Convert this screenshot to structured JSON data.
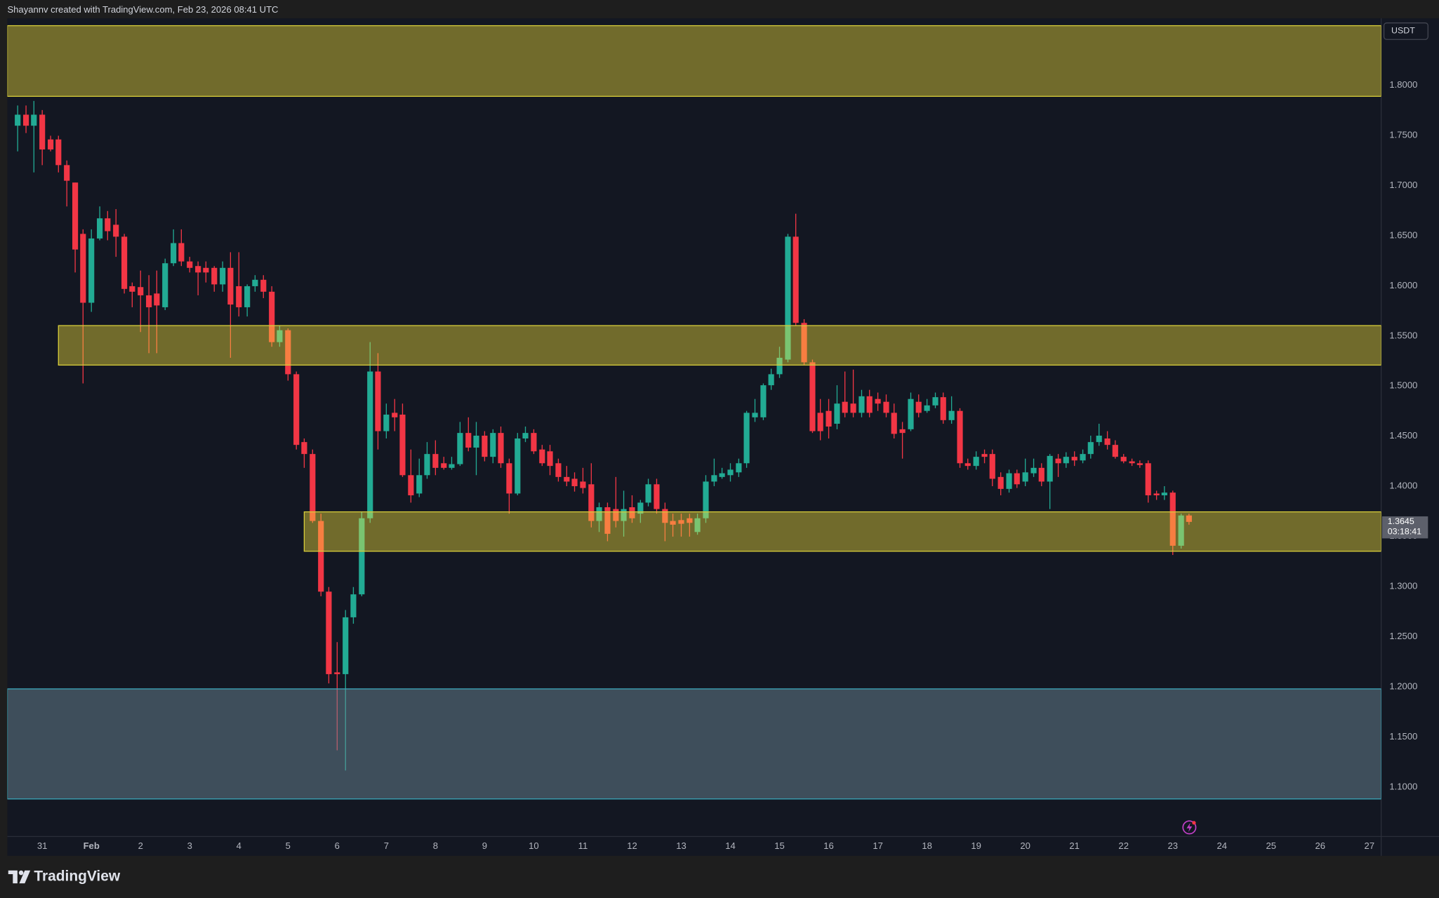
{
  "header": {
    "attribution": "Shayannv created with TradingView.com, Feb 23, 2026 08:41 UTC"
  },
  "footer": {
    "brand": "TradingView"
  },
  "chart_data": {
    "type": "candlestick",
    "currency": "USDT",
    "up_color": "#22ab94",
    "down_color": "#f23645",
    "x": [
      -0.5,
      -0.33,
      -0.17,
      0,
      0.17,
      0.33,
      0.5,
      0.67,
      0.83,
      1,
      1.17,
      1.33,
      1.5,
      1.67,
      1.83,
      2,
      2.17,
      2.33,
      2.5,
      2.67,
      2.83,
      3,
      3.17,
      3.33,
      3.5,
      3.67,
      3.83,
      4,
      4.17,
      4.33,
      4.5,
      4.67,
      4.83,
      5,
      5.17,
      5.33,
      5.5,
      5.67,
      5.83,
      6,
      6.17,
      6.33,
      6.5,
      6.67,
      6.83,
      7,
      7.17,
      7.33,
      7.5,
      7.67,
      7.83,
      8,
      8.17,
      8.33,
      8.5,
      8.67,
      8.83,
      9,
      9.17,
      9.33,
      9.5,
      9.67,
      9.83,
      10,
      10.17,
      10.33,
      10.5,
      10.67,
      10.83,
      11,
      11.17,
      11.33,
      11.5,
      11.67,
      11.83,
      12,
      12.17,
      12.33,
      12.5,
      12.67,
      12.83,
      13,
      13.17,
      13.33,
      13.5,
      13.67,
      13.83,
      14,
      14.17,
      14.33,
      14.5,
      14.67,
      14.83,
      15,
      15.17,
      15.33,
      15.5,
      15.67,
      15.83,
      16,
      16.17,
      16.33,
      16.5,
      16.67,
      16.83,
      17,
      17.17,
      17.33,
      17.5,
      17.67,
      17.83,
      18,
      18.17,
      18.33,
      18.5,
      18.67,
      18.83,
      19,
      19.17,
      19.33,
      19.5,
      19.67,
      19.83,
      20,
      20.17,
      20.33,
      20.5,
      20.67,
      20.83,
      21,
      21.17,
      21.33,
      21.5,
      21.67,
      21.83,
      22,
      22.17,
      22.33,
      22.5,
      22.67,
      22.83,
      23,
      23.17,
      23.33
    ],
    "open": [
      1.7597,
      1.7707,
      1.7597,
      1.7707,
      1.746,
      1.746,
      1.7204,
      1.703,
      1.6518,
      1.5831,
      1.6472,
      1.6673,
      1.6609,
      1.649,
      1.5996,
      1.5987,
      1.5905,
      1.5923,
      1.5786,
      1.6225,
      1.6426,
      1.6243,
      1.6197,
      1.6179,
      1.6179,
      1.6014,
      1.6179,
      1.5996,
      1.5786,
      1.5996,
      1.606,
      1.5941,
      1.5438,
      1.5557,
      1.5118,
      1.4441,
      1.4322,
      1.3654,
      1.2949,
      1.2144,
      1.2126,
      1.2693,
      1.2922,
      1.3681,
      1.5145,
      1.455,
      1.4733,
      1.4715,
      1.4111,
      1.3928,
      1.4111,
      1.4322,
      1.423,
      1.4184,
      1.4221,
      1.4532,
      1.4386,
      1.4505,
      1.4294,
      1.4532,
      1.423,
      1.3928,
      1.4477,
      1.4532,
      1.4367,
      1.4349,
      1.423,
      1.4093,
      1.4075,
      1.4047,
      1.402,
      1.3654,
      1.3791,
      1.3773,
      1.3654,
      1.3791,
      1.3727,
      1.3837,
      1.402,
      1.3773,
      1.3654,
      1.3663,
      1.3681,
      1.3544,
      1.3681,
      1.4047,
      1.4093,
      1.4111,
      1.4139,
      1.423,
      1.4688,
      1.4688,
      1.5008,
      1.5118,
      1.5264,
      1.649,
      1.563,
      1.5237,
      1.4733,
      1.4752,
      1.4624,
      1.4843,
      1.4825,
      1.4733,
      1.4898,
      1.4871,
      1.4843,
      1.4733,
      1.4569,
      1.4569,
      1.4843,
      1.4752,
      1.4807,
      1.4889,
      1.466,
      1.4752,
      1.423,
      1.4203,
      1.4322,
      1.4322,
      1.4093,
      1.3974,
      1.413,
      1.4047,
      1.413,
      1.4184,
      1.4047,
      1.4276,
      1.423,
      1.4294,
      1.4258,
      1.4322,
      1.4441,
      1.4477,
      1.4413,
      1.4294,
      1.4249,
      1.423,
      1.423,
      1.3928,
      1.391,
      1.3937,
      1.3407,
      1.3709
    ],
    "high": [
      1.7799,
      1.7799,
      1.7844,
      1.7753,
      1.7497,
      1.7497,
      1.725,
      1.703,
      1.6563,
      1.6563,
      1.6792,
      1.6746,
      1.6765,
      1.6518,
      1.6033,
      1.6152,
      1.6106,
      1.6152,
      1.6271,
      1.6563,
      1.6563,
      1.6289,
      1.6243,
      1.6243,
      1.6197,
      1.6243,
      1.6335,
      1.6335,
      1.6014,
      1.6106,
      1.6106,
      1.5996,
      1.5603,
      1.5575,
      1.5145,
      1.4477,
      1.4367,
      1.3727,
      1.2995,
      1.2446,
      1.2766,
      1.2995,
      1.3745,
      1.5438,
      1.5328,
      1.4825,
      1.4871,
      1.4825,
      1.4367,
      1.4276,
      1.4441,
      1.4459,
      1.4294,
      1.4294,
      1.4642,
      1.4688,
      1.4642,
      1.455,
      1.4569,
      1.4596,
      1.4276,
      1.4532,
      1.4596,
      1.4569,
      1.4413,
      1.4413,
      1.4276,
      1.4203,
      1.4139,
      1.4184,
      1.423,
      1.3837,
      1.3837,
      1.4093,
      1.3956,
      1.391,
      1.3864,
      1.4075,
      1.4075,
      1.3837,
      1.3727,
      1.3727,
      1.3727,
      1.3727,
      1.4111,
      1.4276,
      1.4184,
      1.423,
      1.4276,
      1.4752,
      1.4871,
      1.5026,
      1.5173,
      1.5392,
      1.6518,
      1.6719,
      1.5667,
      1.5264,
      1.4871,
      1.4871,
      1.5008,
      1.5145,
      1.5164,
      1.4962,
      1.4962,
      1.4935,
      1.4916,
      1.4825,
      1.4642,
      1.4935,
      1.4916,
      1.4871,
      1.4935,
      1.4935,
      1.4898,
      1.4779,
      1.4276,
      1.4349,
      1.4367,
      1.4367,
      1.4139,
      1.4166,
      1.4166,
      1.4276,
      1.4276,
      1.423,
      1.4322,
      1.4322,
      1.434,
      1.4349,
      1.4367,
      1.4505,
      1.4624,
      1.455,
      1.4459,
      1.4322,
      1.4276,
      1.4258,
      1.4258,
      1.3956,
      1.4001,
      1.3956,
      1.3727,
      1.3727
    ],
    "low": [
      1.7341,
      1.7524,
      1.7131,
      1.7204,
      1.7341,
      1.7131,
      1.6792,
      1.6133,
      1.5026,
      1.574,
      1.6454,
      1.6454,
      1.6289,
      1.5923,
      1.5786,
      1.5539,
      1.5328,
      1.5328,
      1.5758,
      1.6197,
      1.6197,
      1.6133,
      1.5905,
      1.6033,
      1.5941,
      1.5941,
      1.5282,
      1.5694,
      1.5694,
      1.5941,
      1.5877,
      1.5392,
      1.5392,
      1.5054,
      1.4367,
      1.4184,
      1.3635,
      1.2903,
      1.2034,
      1.1366,
      1.1165,
      1.2629,
      1.2903,
      1.3635,
      1.4367,
      1.4477,
      1.455,
      1.4093,
      1.3837,
      1.3892,
      1.4075,
      1.4111,
      1.4166,
      1.4166,
      1.4203,
      1.4349,
      1.4111,
      1.4249,
      1.423,
      1.4184,
      1.3727,
      1.391,
      1.4441,
      1.4322,
      1.4203,
      1.4111,
      1.4047,
      1.4001,
      1.3947,
      1.3928,
      1.359,
      1.3544,
      1.3452,
      1.359,
      1.3498,
      1.3635,
      1.3635,
      1.38,
      1.3727,
      1.3452,
      1.3498,
      1.3498,
      1.3498,
      1.3517,
      1.3635,
      1.4001,
      1.4075,
      1.4047,
      1.4093,
      1.4184,
      1.4642,
      1.466,
      1.4962,
      1.5081,
      1.5237,
      1.5603,
      1.5209,
      1.4532,
      1.4459,
      1.4477,
      1.4569,
      1.4688,
      1.4688,
      1.4688,
      1.4688,
      1.4752,
      1.4688,
      1.4477,
      1.4276,
      1.455,
      1.4688,
      1.4733,
      1.4779,
      1.4624,
      1.4624,
      1.4184,
      1.4166,
      1.4166,
      1.423,
      1.4001,
      1.391,
      1.3937,
      1.3983,
      1.4001,
      1.4093,
      1.4001,
      1.3773,
      1.4093,
      1.4184,
      1.4203,
      1.423,
      1.4276,
      1.4404,
      1.4367,
      1.4276,
      1.423,
      1.4203,
      1.4184,
      1.3837,
      1.3864,
      1.3864,
      1.3315,
      1.3379,
      1.3617
    ],
    "close": [
      1.7707,
      1.7597,
      1.7707,
      1.736,
      1.736,
      1.7204,
      1.7048,
      1.6362,
      1.5831,
      1.6472,
      1.6673,
      1.6545,
      1.649,
      1.5969,
      1.5941,
      1.5905,
      1.5786,
      1.5804,
      1.6225,
      1.6426,
      1.6243,
      1.6179,
      1.6133,
      1.6133,
      1.6014,
      1.6179,
      1.5813,
      1.5786,
      1.5996,
      1.606,
      1.5941,
      1.5438,
      1.5557,
      1.5118,
      1.4413,
      1.4322,
      1.3654,
      1.2949,
      1.2126,
      1.2126,
      1.2693,
      1.2922,
      1.3681,
      1.5145,
      1.455,
      1.4715,
      1.4688,
      1.4111,
      1.391,
      1.4111,
      1.4322,
      1.4184,
      1.4184,
      1.4221,
      1.4532,
      1.4386,
      1.4505,
      1.4294,
      1.4532,
      1.423,
      1.3928,
      1.4477,
      1.4532,
      1.4349,
      1.423,
      1.4203,
      1.4093,
      1.4047,
      1.4001,
      1.3983,
      1.3654,
      1.3791,
      1.3526,
      1.3654,
      1.3773,
      1.3681,
      1.3837,
      1.402,
      1.3773,
      1.3635,
      1.3617,
      1.3626,
      1.3635,
      1.3681,
      1.4047,
      1.4111,
      1.413,
      1.4166,
      1.423,
      1.4733,
      1.4733,
      1.5008,
      1.5118,
      1.5282,
      1.649,
      1.563,
      1.5237,
      1.455,
      1.455,
      1.4596,
      1.4825,
      1.4733,
      1.4733,
      1.4898,
      1.4733,
      1.4825,
      1.4733,
      1.4523,
      1.4532,
      1.4871,
      1.4733,
      1.4807,
      1.4889,
      1.466,
      1.4752,
      1.423,
      1.4203,
      1.4294,
      1.4294,
      1.4075,
      1.3974,
      1.413,
      1.402,
      1.4139,
      1.4184,
      1.4047,
      1.4303,
      1.423,
      1.4294,
      1.4258,
      1.4322,
      1.4441,
      1.4505,
      1.4413,
      1.4294,
      1.4249,
      1.423,
      1.4212,
      1.391,
      1.391,
      1.3937,
      1.3407,
      1.3709,
      1.3645
    ],
    "xlim": [
      -0.71,
      27.24
    ],
    "ylim": [
      1.0506,
      1.8668
    ],
    "xticks": [
      {
        "value": 0,
        "label": "31"
      },
      {
        "value": 1,
        "label": "Feb"
      },
      2,
      3,
      4,
      5,
      6,
      7,
      8,
      9,
      10,
      11,
      12,
      13,
      14,
      15,
      16,
      17,
      18,
      19,
      20,
      21,
      22,
      23,
      24,
      25,
      26,
      27
    ],
    "yticks": [
      {
        "value": 1.1,
        "label": "1.1000"
      },
      {
        "value": 1.15,
        "label": "1.1500"
      },
      {
        "value": 1.2,
        "label": "1.2000"
      },
      {
        "value": 1.25,
        "label": "1.2500"
      },
      {
        "value": 1.3,
        "label": "1.3000"
      },
      {
        "value": 1.35,
        "label": "1.3500"
      },
      {
        "value": 1.4,
        "label": "1.4000"
      },
      {
        "value": 1.45,
        "label": "1.4500"
      },
      {
        "value": 1.5,
        "label": "1.5000"
      },
      {
        "value": 1.55,
        "label": "1.5500"
      },
      {
        "value": 1.6,
        "label": "1.6000"
      },
      {
        "value": 1.65,
        "label": "1.6500"
      },
      {
        "value": 1.7,
        "label": "1.7000"
      },
      {
        "value": 1.75,
        "label": "1.7500"
      },
      {
        "value": 1.8,
        "label": "1.8000"
      }
    ],
    "zones": [
      {
        "top": 1.8595,
        "bottom": 1.789,
        "fill": "rgba(255,235,59,0.4)",
        "border": "#d6cc3a"
      },
      {
        "top": 1.5603,
        "bottom": 1.5209,
        "start": 0.33,
        "fill": "rgba(255,235,59,0.4)",
        "border": "#d6cc3a"
      },
      {
        "top": 1.3745,
        "bottom": 1.3352,
        "start": 5.33,
        "fill": "rgba(255,235,59,0.4)",
        "border": "#d6cc3a"
      },
      {
        "top": 1.1979,
        "bottom": 1.0881,
        "fill": "rgba(110,140,155,0.47)",
        "border": "#3aa6b9"
      }
    ],
    "last_price": 1.3645,
    "countdown": "03:18:41"
  }
}
